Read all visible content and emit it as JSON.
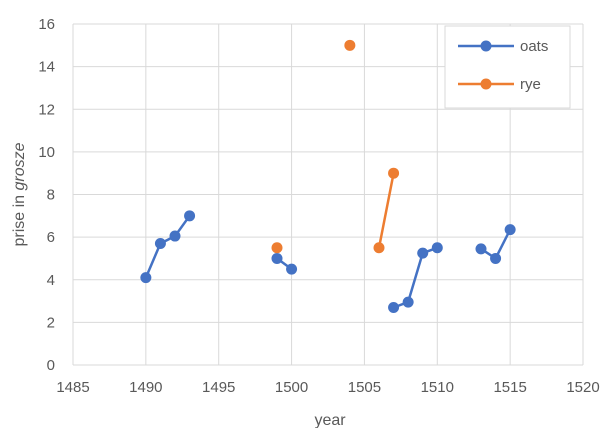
{
  "chart_data": {
    "type": "scatter",
    "xlabel": "year",
    "ylabel_prefix": "prise in ",
    "ylabel_italic": "grosze",
    "xlim": [
      1485,
      1520
    ],
    "ylim": [
      0,
      16
    ],
    "x_ticks": [
      1485,
      1490,
      1495,
      1500,
      1505,
      1510,
      1515,
      1520
    ],
    "y_ticks": [
      0,
      2,
      4,
      6,
      8,
      10,
      12,
      14,
      16
    ],
    "grid": true,
    "legend_position": "top-right",
    "series": [
      {
        "name": "oats",
        "color": "#4472C4",
        "segments": [
          [
            [
              1490,
              4.1
            ],
            [
              1491,
              5.7
            ],
            [
              1492,
              6.05
            ],
            [
              1493,
              7.0
            ]
          ],
          [
            [
              1499,
              5.0
            ],
            [
              1500,
              4.5
            ]
          ],
          [
            [
              1507,
              2.7
            ],
            [
              1508,
              2.95
            ],
            [
              1509,
              5.25
            ],
            [
              1510,
              5.5
            ]
          ],
          [
            [
              1513,
              5.45
            ],
            [
              1514,
              5.0
            ],
            [
              1515,
              6.35
            ]
          ]
        ]
      },
      {
        "name": "rye",
        "color": "#ED7D31",
        "segments": [
          [
            [
              1499,
              5.5
            ]
          ],
          [
            [
              1504,
              15.0
            ]
          ],
          [
            [
              1506,
              5.5
            ],
            [
              1507,
              9.0
            ]
          ]
        ]
      }
    ]
  }
}
